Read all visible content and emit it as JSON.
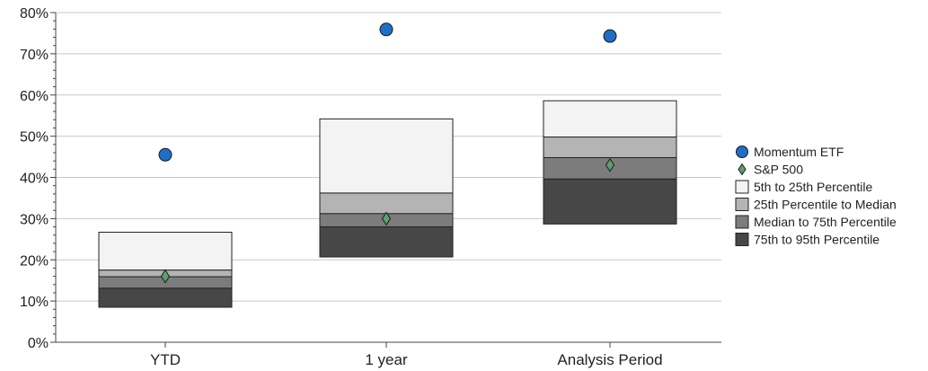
{
  "chart_data": {
    "type": "box",
    "categories": [
      "YTD",
      "1 year",
      "Analysis Period"
    ],
    "ylim": [
      0,
      80
    ],
    "yticks": [
      "0%",
      "10%",
      "20%",
      "30%",
      "40%",
      "50%",
      "60%",
      "70%",
      "80%"
    ],
    "ytick_values": [
      0,
      10,
      20,
      30,
      40,
      50,
      60,
      70,
      80
    ],
    "grid": true,
    "legend_position": "right",
    "series": [
      {
        "name": "Momentum ETF",
        "kind": "marker-circle",
        "color": "#1f6fc6",
        "values": [
          45.5,
          75.9,
          74.3
        ]
      },
      {
        "name": "S&P 500",
        "kind": "marker-diamond",
        "color": "#5da06c",
        "values": [
          16.0,
          30.0,
          43.0
        ]
      },
      {
        "name": "5th to 25th Percentile",
        "kind": "band",
        "color": "#f3f3f3",
        "low": [
          17.5,
          36.2,
          49.8
        ],
        "high": [
          26.7,
          54.2,
          58.6
        ]
      },
      {
        "name": "25th Percentile to Median",
        "kind": "band",
        "color": "#b4b4b4",
        "low": [
          15.9,
          31.2,
          44.8
        ],
        "high": [
          17.5,
          36.2,
          49.8
        ]
      },
      {
        "name": "Median to 75th Percentile",
        "kind": "band",
        "color": "#7c7c7c",
        "low": [
          13.1,
          28.0,
          39.6
        ],
        "high": [
          15.9,
          31.2,
          44.8
        ]
      },
      {
        "name": "75th to 95th Percentile",
        "kind": "band",
        "color": "#474747",
        "low": [
          8.5,
          20.7,
          28.7
        ],
        "high": [
          13.1,
          28.0,
          39.6
        ]
      }
    ]
  }
}
